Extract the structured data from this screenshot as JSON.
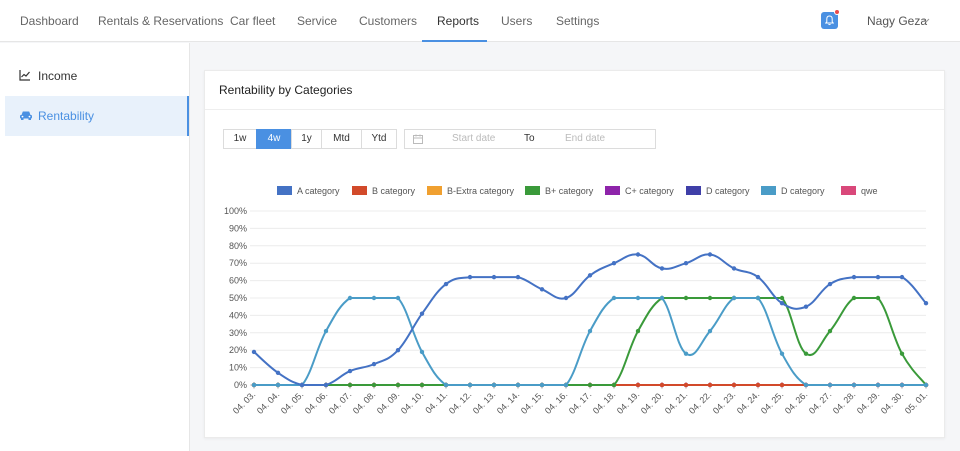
{
  "nav": {
    "items": [
      "Dashboard",
      "Rentals & Reservations",
      "Car fleet",
      "Service",
      "Customers",
      "Reports",
      "Users",
      "Settings"
    ],
    "active": "Reports",
    "user_name": "Nagy Geza",
    "icons": {
      "notification": "bell-icon",
      "dropdown": "chevron-down-icon"
    }
  },
  "sidebar": {
    "items": [
      {
        "label": "Income",
        "icon": "line-chart-icon",
        "active": false
      },
      {
        "label": "Rentability",
        "icon": "car-icon",
        "active": true
      }
    ]
  },
  "card": {
    "title": "Rentability by Categories",
    "ranges": [
      "1w",
      "4w",
      "1y",
      "Mtd",
      "Ytd"
    ],
    "active_range": "4w",
    "date_range": {
      "start_placeholder": "Start date",
      "separator": "To",
      "end_placeholder": "End date"
    }
  },
  "colors": {
    "accent": "#4a90e2",
    "badge": "#e94b4b"
  },
  "chart_data": {
    "type": "line",
    "title": "",
    "xlabel": "",
    "ylabel": "",
    "ylim": [
      0,
      100
    ],
    "y_ticks": [
      "0%",
      "10%",
      "20%",
      "30%",
      "40%",
      "50%",
      "60%",
      "70%",
      "80%",
      "90%",
      "100%"
    ],
    "grid": true,
    "legend_position": "top-center",
    "categories": [
      "04. 03.",
      "04. 04.",
      "04. 05.",
      "04. 06.",
      "04. 07.",
      "04. 08.",
      "04. 09.",
      "04. 10.",
      "04. 11.",
      "04. 12.",
      "04. 13.",
      "04. 14.",
      "04. 15.",
      "04. 16.",
      "04. 17.",
      "04. 18.",
      "04. 19.",
      "04. 20.",
      "04. 21.",
      "04. 22.",
      "04. 23.",
      "04. 24.",
      "04. 25.",
      "04. 26.",
      "04. 27.",
      "04. 28.",
      "04. 29.",
      "04. 30.",
      "05. 01."
    ],
    "series": [
      {
        "name": "A category",
        "color": "#4472c4",
        "values": [
          19,
          7,
          0,
          0,
          8,
          12,
          20,
          41,
          58,
          62,
          62,
          62,
          55,
          50,
          63,
          70,
          75,
          67,
          70,
          75,
          67,
          62,
          47,
          45,
          58,
          62,
          62,
          62,
          47
        ]
      },
      {
        "name": "B category",
        "color": "#d24a2a",
        "values": [
          0,
          0,
          0,
          0,
          0,
          0,
          0,
          0,
          0,
          0,
          0,
          0,
          0,
          0,
          0,
          0,
          0,
          0,
          0,
          0,
          0,
          0,
          0,
          0,
          0,
          0,
          0,
          0,
          0
        ]
      },
      {
        "name": "B-Extra category",
        "color": "#f0a030",
        "values": [
          0,
          0,
          0,
          0,
          0,
          0,
          0,
          0,
          0,
          0,
          0,
          0,
          0,
          0,
          0,
          0,
          0,
          0,
          0,
          0,
          0,
          0,
          0,
          0,
          0,
          0,
          0,
          0,
          0
        ]
      },
      {
        "name": "B+ category",
        "color": "#3a9a3a",
        "values": [
          0,
          0,
          0,
          0,
          0,
          0,
          0,
          0,
          0,
          0,
          0,
          0,
          0,
          0,
          0,
          0,
          31,
          50,
          50,
          50,
          50,
          50,
          50,
          18,
          31,
          50,
          50,
          18,
          0
        ]
      },
      {
        "name": "C+ category",
        "color": "#8e24aa",
        "values": [
          0,
          0,
          0,
          0,
          0,
          0,
          0,
          0,
          0,
          0,
          0,
          0,
          0,
          0,
          0,
          0,
          0,
          0,
          0,
          0,
          0,
          0,
          0,
          0,
          0,
          0,
          0,
          0,
          0
        ]
      },
      {
        "name": "D category",
        "color": "#3f3fa8",
        "values": [
          0,
          0,
          0,
          0,
          0,
          0,
          0,
          0,
          0,
          0,
          0,
          0,
          0,
          0,
          0,
          0,
          0,
          0,
          0,
          0,
          0,
          0,
          0,
          0,
          0,
          0,
          0,
          0,
          0
        ]
      },
      {
        "name": "D category",
        "color": "#4a9cc7",
        "values": [
          0,
          0,
          0,
          31,
          50,
          50,
          50,
          19,
          0,
          0,
          0,
          0,
          0,
          0,
          31,
          50,
          50,
          50,
          18,
          31,
          50,
          50,
          18,
          0,
          0,
          0,
          0,
          0,
          0
        ]
      },
      {
        "name": "qwe",
        "color": "#d9487a",
        "values": [
          0,
          0,
          0,
          0,
          0,
          0,
          0,
          0,
          0,
          0,
          0,
          0,
          0,
          0,
          0,
          0,
          0,
          0,
          0,
          0,
          0,
          0,
          0,
          0,
          0,
          0,
          0,
          0,
          0
        ]
      }
    ]
  }
}
